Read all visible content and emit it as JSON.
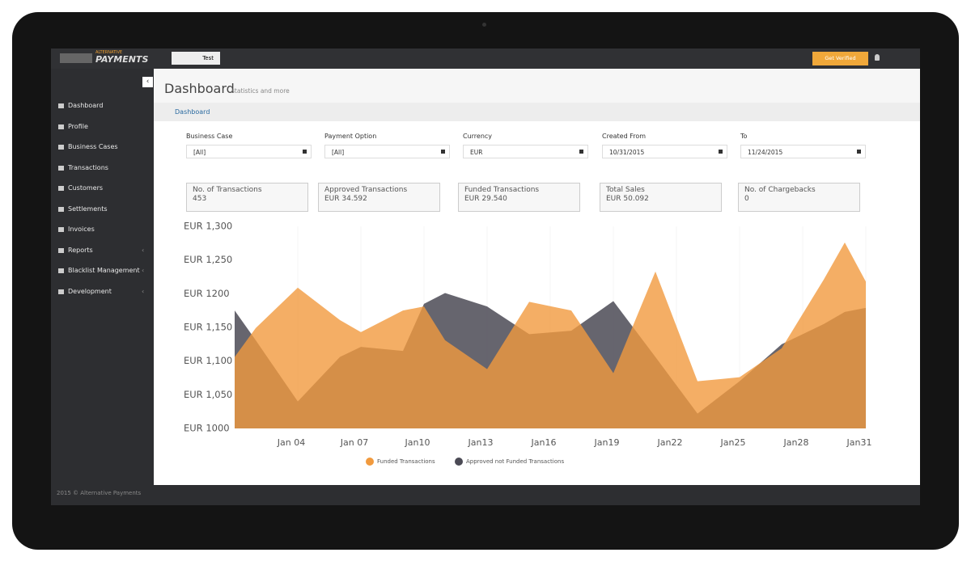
{
  "topbar": {
    "logo_small": "ALTERNATIVE",
    "logo": "PAYMENTS",
    "search": "Test",
    "button": "Get Verified"
  },
  "sidebar": {
    "items": [
      {
        "label": "Dashboard",
        "submenu": false
      },
      {
        "label": "Profile",
        "submenu": false
      },
      {
        "label": "Business Cases",
        "submenu": false
      },
      {
        "label": "Transactions",
        "submenu": false
      },
      {
        "label": "Customers",
        "submenu": false
      },
      {
        "label": "Settlements",
        "submenu": false
      },
      {
        "label": "Invoices",
        "submenu": false
      },
      {
        "label": "Reports",
        "submenu": true
      },
      {
        "label": "Blacklist Management",
        "submenu": true
      },
      {
        "label": "Development",
        "submenu": true
      }
    ],
    "footer": "2015 © Alternative Payments"
  },
  "header": {
    "title": "Dashboard",
    "subtitle": "statistics and more",
    "breadcrumb": "Dashboard"
  },
  "filters": [
    {
      "label": "Business Case",
      "value": "[All]"
    },
    {
      "label": "Payment Option",
      "value": "[All]"
    },
    {
      "label": "Currency",
      "value": "EUR"
    },
    {
      "label": "Created From",
      "value": "10/31/2015"
    },
    {
      "label": "To",
      "value": "11/24/2015"
    }
  ],
  "stats": [
    {
      "label": "No. of Transactions",
      "value": "453"
    },
    {
      "label": "Approved Transactions",
      "value": "EUR 34.592"
    },
    {
      "label": "Funded Transactions",
      "value": "EUR 29.540"
    },
    {
      "label": "Total Sales",
      "value": "EUR 50.092"
    },
    {
      "label": "No. of Chargebacks",
      "value": "0"
    }
  ],
  "chart_data": {
    "type": "area",
    "x": [
      1,
      2,
      4,
      6,
      7,
      9,
      10,
      11,
      13,
      15,
      17,
      19,
      21,
      23,
      25,
      27,
      29,
      30,
      31
    ],
    "series": [
      {
        "name": "Approved not Funded Transactions",
        "color": "#4b4a55",
        "values": [
          1175,
          1131,
          1040,
          1106,
          1121,
          1115,
          1185,
          1201,
          1181,
          1140,
          1145,
          1189,
          1106,
          1022,
          1070,
          1125,
          1155,
          1173,
          1179
        ]
      },
      {
        "name": "Funded Transactions",
        "color": "#f19a3e",
        "values": [
          1106,
          1149,
          1209,
          1161,
          1143,
          1175,
          1181,
          1131,
          1088,
          1188,
          1175,
          1082,
          1233,
          1070,
          1076,
          1119,
          1221,
          1276,
          1218
        ]
      }
    ],
    "legend_order": [
      1,
      0
    ],
    "xlim": [
      1,
      31
    ],
    "xticks": [
      {
        "value": 4,
        "label": "Jan 04"
      },
      {
        "value": 7,
        "label": "Jan 07"
      },
      {
        "value": 10,
        "label": "Jan10"
      },
      {
        "value": 13,
        "label": "Jan13"
      },
      {
        "value": 16,
        "label": "Jan16"
      },
      {
        "value": 19,
        "label": "Jan19"
      },
      {
        "value": 22,
        "label": "Jan22"
      },
      {
        "value": 25,
        "label": "Jan25"
      },
      {
        "value": 28,
        "label": "Jan28"
      },
      {
        "value": 31,
        "label": "Jan31"
      }
    ],
    "ylim": [
      1000,
      1300
    ],
    "yticks": [
      {
        "value": 1000,
        "label": "EUR 1000"
      },
      {
        "value": 1050,
        "label": "EUR 1,050"
      },
      {
        "value": 1100,
        "label": "EUR 1,100"
      },
      {
        "value": 1150,
        "label": "EUR 1,150"
      },
      {
        "value": 1200,
        "label": "EUR 1200"
      },
      {
        "value": 1250,
        "label": "EUR 1,250"
      },
      {
        "value": 1300,
        "label": "EUR 1,300"
      }
    ],
    "grid": false
  }
}
